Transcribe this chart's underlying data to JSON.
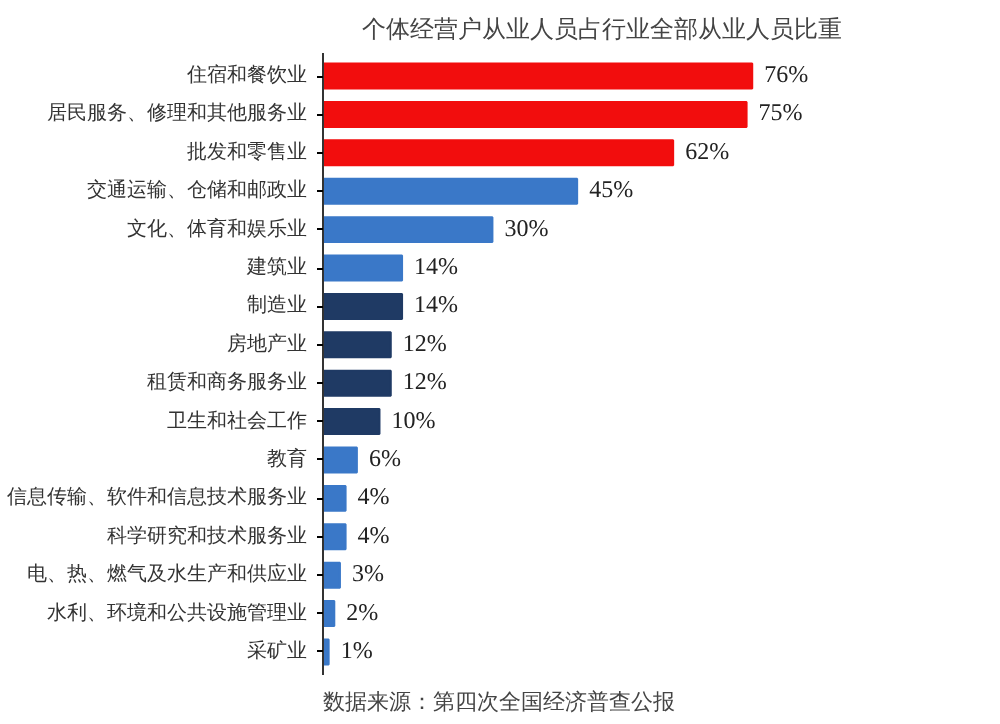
{
  "chart_data": {
    "type": "bar",
    "orientation": "horizontal",
    "title": "个体经营户从业人员占行业全部从业人员比重",
    "categories": [
      "住宿和餐饮业",
      "居民服务、修理和其他服务业",
      "批发和零售业",
      "交通运输、仓储和邮政业",
      "文化、体育和娱乐业",
      "建筑业",
      "制造业",
      "房地产业",
      "租赁和商务服务业",
      "卫生和社会工作",
      "教育",
      "信息传输、软件和信息技术服务业",
      "科学研究和技术服务业",
      "电、热、燃气及水生产和供应业",
      "水利、环境和公共设施管理业",
      "采矿业"
    ],
    "values": [
      76,
      75,
      62,
      45,
      30,
      14,
      14,
      12,
      12,
      10,
      6,
      4,
      4,
      3,
      2,
      1
    ],
    "colors": [
      "#f20d0d",
      "#f20d0d",
      "#f20d0d",
      "#3a78c8",
      "#3a78c8",
      "#3a78c8",
      "#1f3a64",
      "#1f3a64",
      "#1f3a64",
      "#1f3a64",
      "#3a78c8",
      "#3a78c8",
      "#3a78c8",
      "#3a78c8",
      "#3a78c8",
      "#3a78c8"
    ],
    "value_labels": [
      "76%",
      "75%",
      "62%",
      "45%",
      "30%",
      "14%",
      "14%",
      "12%",
      "12%",
      "10%",
      "6%",
      "4%",
      "4%",
      "3%",
      "2%",
      "1%"
    ],
    "annotations": [
      "数据来源：第四次全国经济普查公报"
    ]
  }
}
